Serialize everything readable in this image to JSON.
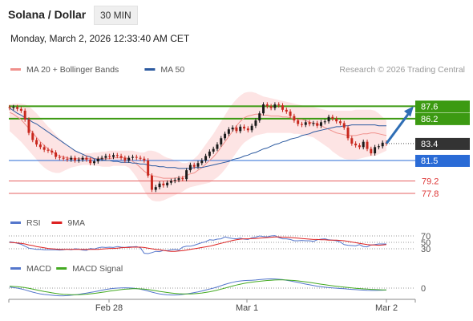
{
  "header": {
    "title": "Solana / Dollar",
    "timeframe": "30 MIN",
    "timestamp": "Monday, March 2, 2026 12:33:40 AM CET",
    "credit": "Research © 2026 Trading Central"
  },
  "legends": {
    "price": [
      {
        "label": "MA 20 + Bollinger Bands",
        "color": "#f0908c"
      },
      {
        "label": "MA 50",
        "color": "#2c5aa0"
      }
    ],
    "rsi": [
      {
        "label": "RSI",
        "color": "#5577cc"
      },
      {
        "label": "9MA",
        "color": "#dd2222"
      }
    ],
    "macd": [
      {
        "label": "MACD",
        "color": "#5577cc"
      },
      {
        "label": "MACD Signal",
        "color": "#44aa22"
      }
    ]
  },
  "colors": {
    "up": "#1a1a1a",
    "down": "#c8281e",
    "resistance": "#3c9a12",
    "support": "#e66060",
    "pivot": "#2a6bd6",
    "current": "#333333",
    "bb_fill": "#fde4e4",
    "arrow": "#2f6eb5"
  },
  "chart_data": [
    {
      "type": "candlestick",
      "title": "Solana / Dollar",
      "x_ticks": [
        "Feb 28",
        "Mar 1",
        "Mar 2"
      ],
      "y_range": [
        75.9,
        89.8
      ],
      "current_price": "83.4",
      "levels": [
        {
          "value": 87.6,
          "label": "87.6",
          "kind": "resistance"
        },
        {
          "value": 86.2,
          "label": "86.2",
          "kind": "resistance"
        },
        {
          "value": 81.5,
          "label": "81.5",
          "kind": "pivot"
        },
        {
          "value": 79.2,
          "label": "79.2",
          "kind": "support"
        },
        {
          "value": 77.8,
          "label": "77.8",
          "kind": "support"
        }
      ],
      "close": [
        87.4,
        87.5,
        87.3,
        87.1,
        86.1,
        84.6,
        83.8,
        83.3,
        83.0,
        82.7,
        82.6,
        82.4,
        81.9,
        81.8,
        81.7,
        81.6,
        81.8,
        81.5,
        81.6,
        81.8,
        81.6,
        81.2,
        81.4,
        81.7,
        81.8,
        82.0,
        81.9,
        82.1,
        82.0,
        81.8,
        81.5,
        81.8,
        81.9,
        81.8,
        81.7,
        81.5,
        79.8,
        78.2,
        78.5,
        78.9,
        78.7,
        79.0,
        79.2,
        79.3,
        79.5,
        79.4,
        80.4,
        81.0,
        80.8,
        81.2,
        81.5,
        82.0,
        82.5,
        82.8,
        83.3,
        84.0,
        84.5,
        85.0,
        85.2,
        84.8,
        85.3,
        85.1,
        84.9,
        85.4,
        86.0,
        86.8,
        87.8,
        87.6,
        87.4,
        87.8,
        87.7,
        87.2,
        87.0,
        86.5,
        86.0,
        85.6,
        85.5,
        85.8,
        85.6,
        85.7,
        85.4,
        85.8,
        85.9,
        86.4,
        86.2,
        85.9,
        85.7,
        85.2,
        84.0,
        83.4,
        83.2,
        83.0,
        83.6,
        82.8,
        82.3,
        83.0,
        83.1,
        83.5,
        83.4
      ],
      "bollinger": {
        "upper": [
          87.8,
          87.9,
          87.9,
          87.9,
          87.8,
          87.6,
          87.2,
          86.8,
          86.3,
          85.8,
          85.3,
          84.9,
          84.4,
          84.0,
          83.6,
          83.2,
          82.9,
          82.6,
          82.4,
          82.3,
          82.3,
          82.3,
          82.4,
          82.4,
          82.5,
          82.5,
          82.6,
          82.6,
          82.6,
          82.6,
          82.6,
          82.6,
          82.6,
          82.5,
          82.4,
          82.4,
          82.6,
          82.6,
          82.5,
          82.3,
          82.0,
          81.8,
          81.7,
          81.5,
          81.4,
          81.2,
          81.2,
          81.4,
          81.7,
          82.1,
          82.7,
          83.3,
          83.9,
          84.5,
          85.2,
          85.9,
          86.6,
          87.3,
          87.9,
          88.4,
          88.8,
          89.1,
          89.2,
          89.2,
          89.1,
          88.9,
          88.7,
          88.6,
          88.5,
          88.4,
          88.3,
          88.2,
          88.1,
          88.0,
          87.9,
          87.8,
          87.7,
          87.6,
          87.5,
          87.5,
          87.4,
          87.3,
          87.2,
          87.1,
          87.1,
          87.1,
          87.1,
          87.1,
          87.1,
          87.1,
          87.2,
          87.2,
          87.2,
          87.2,
          87.2,
          87.1,
          86.8,
          86.4,
          86.0
        ],
        "lower": [
          84.8,
          84.4,
          84.0,
          83.6,
          83.1,
          82.6,
          82.1,
          81.6,
          81.1,
          80.7,
          80.4,
          80.2,
          80.1,
          80.1,
          80.3,
          80.5,
          80.7,
          80.8,
          80.9,
          81.0,
          81.0,
          81.0,
          80.9,
          80.9,
          80.8,
          80.8,
          80.8,
          80.9,
          80.9,
          80.9,
          80.9,
          80.7,
          80.2,
          79.6,
          78.9,
          78.1,
          77.4,
          77.0,
          76.9,
          76.9,
          77.0,
          77.2,
          77.4,
          77.6,
          77.8,
          78.0,
          78.3,
          78.5,
          78.6,
          78.7,
          78.8,
          78.9,
          79.0,
          79.3,
          79.6,
          80.0,
          80.5,
          81.1,
          81.8,
          82.4,
          83.0,
          83.5,
          83.8,
          84.1,
          84.3,
          84.4,
          84.5,
          84.6,
          84.6,
          84.6,
          84.6,
          84.6,
          84.6,
          84.6,
          84.5,
          84.5,
          84.4,
          84.3,
          84.2,
          84.1,
          83.8,
          83.5,
          83.2,
          82.9,
          82.5,
          82.2,
          81.9,
          81.7,
          81.6,
          81.6,
          81.6,
          81.7,
          81.8,
          81.9,
          82.0,
          82.0,
          82.2,
          82.4,
          82.6
        ]
      },
      "ma20": [
        86.9,
        86.7,
        86.4,
        86.1,
        85.6,
        85.1,
        84.6,
        84.1,
        83.6,
        83.2,
        82.8,
        82.5,
        82.2,
        82.0,
        81.9,
        81.8,
        81.7,
        81.7,
        81.7,
        81.7,
        81.7,
        81.7,
        81.7,
        81.7,
        81.7,
        81.7,
        81.7,
        81.8,
        81.8,
        81.8,
        81.8,
        81.7,
        81.4,
        81.1,
        80.7,
        80.3,
        80.0,
        79.8,
        79.7,
        79.6,
        79.5,
        79.5,
        79.5,
        79.5,
        79.6,
        79.6,
        79.8,
        80.0,
        80.1,
        80.4,
        80.7,
        81.1,
        81.5,
        81.9,
        82.4,
        83.0,
        83.6,
        84.2,
        84.8,
        85.4,
        85.9,
        86.3,
        86.5,
        86.6,
        86.7,
        86.7,
        86.6,
        86.6,
        86.5,
        86.5,
        86.5,
        86.4,
        86.4,
        86.3,
        86.2,
        86.1,
        86.1,
        86.0,
        85.8,
        85.7,
        85.6,
        85.4,
        85.2,
        85.0,
        84.8,
        84.6,
        84.5,
        84.4,
        84.3,
        84.3,
        84.3,
        84.4,
        84.5,
        84.5,
        84.6,
        84.6,
        84.5,
        84.4,
        84.3
      ],
      "ma50": [
        87.4,
        87.1,
        86.8,
        86.6,
        86.3,
        86.1,
        85.8,
        85.6,
        85.3,
        85.0,
        84.7,
        84.4,
        84.1,
        83.8,
        83.5,
        83.2,
        82.9,
        82.6,
        82.4,
        82.2,
        82.0,
        81.9,
        81.7,
        81.6,
        81.6,
        81.5,
        81.5,
        81.4,
        81.4,
        81.3,
        81.3,
        81.3,
        81.2,
        81.2,
        81.1,
        81.1,
        81.0,
        80.9,
        80.9,
        80.8,
        80.8,
        80.7,
        80.7,
        80.7,
        80.6,
        80.6,
        80.6,
        80.6,
        80.7,
        80.7,
        80.7,
        80.8,
        80.9,
        81.0,
        81.1,
        81.2,
        81.3,
        81.4,
        81.6,
        81.7,
        81.8,
        82.0,
        82.1,
        82.3,
        82.4,
        82.6,
        82.8,
        82.9,
        83.1,
        83.3,
        83.4,
        83.6,
        83.7,
        83.9,
        84.0,
        84.1,
        84.3,
        84.4,
        84.5,
        84.7,
        84.8,
        84.9,
        85.0,
        85.1,
        85.2,
        85.3,
        85.3,
        85.4,
        85.4,
        85.5,
        85.5,
        85.5,
        85.5,
        85.5,
        85.5,
        85.5,
        85.4,
        85.4,
        85.4
      ]
    },
    {
      "type": "line",
      "title": "RSI",
      "levels": [
        "70",
        "50",
        "30"
      ],
      "y_range": [
        0,
        100
      ],
      "series": [
        {
          "name": "RSI",
          "values": [
            52,
            50,
            47,
            44,
            38,
            32,
            30,
            28,
            28,
            27,
            27,
            27,
            27,
            26,
            27,
            29,
            27,
            30,
            29,
            26,
            25,
            31,
            29,
            33,
            35,
            34,
            35,
            34,
            37,
            35,
            34,
            36,
            36,
            37,
            33,
            16,
            15,
            18,
            22,
            21,
            25,
            24,
            27,
            28,
            26,
            35,
            38,
            38,
            41,
            45,
            49,
            52,
            58,
            57,
            60,
            61,
            67,
            64,
            62,
            61,
            63,
            60,
            59,
            64,
            66,
            70,
            68,
            67,
            70,
            71,
            65,
            61,
            61,
            59,
            55,
            55,
            56,
            55,
            55,
            53,
            58,
            60,
            61,
            58,
            57,
            55,
            51,
            43,
            41,
            40,
            39,
            43,
            37,
            36,
            42,
            43,
            45,
            45,
            45
          ]
        },
        {
          "name": "9MA",
          "values": [
            50,
            49,
            48,
            47,
            45,
            42,
            40,
            37,
            35,
            33,
            31,
            30,
            29,
            28,
            28,
            28,
            28,
            28,
            28,
            28,
            28,
            28,
            28,
            28,
            29,
            30,
            31,
            31,
            32,
            33,
            34,
            34,
            35,
            35,
            35,
            34,
            32,
            30,
            28,
            27,
            25,
            23,
            22,
            22,
            23,
            24,
            26,
            28,
            30,
            32,
            34,
            36,
            38,
            41,
            44,
            47,
            50,
            53,
            56,
            58,
            60,
            61,
            61,
            62,
            62,
            63,
            64,
            65,
            66,
            67,
            67,
            66,
            66,
            65,
            64,
            63,
            62,
            61,
            60,
            59,
            59,
            58,
            58,
            57,
            57,
            57,
            56,
            55,
            53,
            51,
            49,
            47,
            45,
            43,
            42,
            42,
            41,
            42,
            43
          ]
        }
      ]
    },
    {
      "type": "line",
      "title": "MACD",
      "levels": [
        "0"
      ],
      "y_range": [
        -1.4,
        1.3
      ],
      "series": [
        {
          "name": "MACD",
          "values": [
            0.1,
            0.05,
            0.0,
            -0.08,
            -0.18,
            -0.3,
            -0.42,
            -0.52,
            -0.6,
            -0.66,
            -0.7,
            -0.74,
            -0.78,
            -0.8,
            -0.8,
            -0.78,
            -0.74,
            -0.7,
            -0.64,
            -0.58,
            -0.52,
            -0.45,
            -0.38,
            -0.3,
            -0.22,
            -0.15,
            -0.08,
            -0.03,
            0.0,
            0.02,
            0.03,
            0.02,
            0.0,
            -0.05,
            -0.12,
            -0.2,
            -0.3,
            -0.42,
            -0.52,
            -0.6,
            -0.66,
            -0.7,
            -0.72,
            -0.72,
            -0.7,
            -0.66,
            -0.6,
            -0.54,
            -0.47,
            -0.39,
            -0.3,
            -0.2,
            -0.1,
            0.0,
            0.12,
            0.25,
            0.38,
            0.5,
            0.6,
            0.68,
            0.74,
            0.78,
            0.8,
            0.82,
            0.84,
            0.88,
            0.92,
            0.95,
            0.96,
            0.95,
            0.92,
            0.88,
            0.82,
            0.75,
            0.67,
            0.59,
            0.5,
            0.42,
            0.34,
            0.27,
            0.2,
            0.14,
            0.09,
            0.05,
            0.02,
            -0.01,
            -0.04,
            -0.07,
            -0.1,
            -0.13,
            -0.16,
            -0.19,
            -0.21,
            -0.23,
            -0.24,
            -0.24,
            -0.23,
            -0.22,
            -0.2
          ]
        },
        {
          "name": "MACD Signal",
          "values": [
            0.2,
            0.17,
            0.14,
            0.1,
            0.05,
            -0.02,
            -0.1,
            -0.18,
            -0.27,
            -0.35,
            -0.42,
            -0.49,
            -0.55,
            -0.6,
            -0.64,
            -0.67,
            -0.69,
            -0.69,
            -0.68,
            -0.66,
            -0.63,
            -0.59,
            -0.55,
            -0.5,
            -0.44,
            -0.38,
            -0.32,
            -0.26,
            -0.21,
            -0.16,
            -0.12,
            -0.09,
            -0.07,
            -0.07,
            -0.08,
            -0.11,
            -0.15,
            -0.21,
            -0.27,
            -0.34,
            -0.4,
            -0.46,
            -0.51,
            -0.55,
            -0.58,
            -0.6,
            -0.61,
            -0.6,
            -0.58,
            -0.55,
            -0.51,
            -0.45,
            -0.38,
            -0.3,
            -0.21,
            -0.11,
            0.0,
            0.11,
            0.22,
            0.32,
            0.41,
            0.49,
            0.56,
            0.62,
            0.67,
            0.71,
            0.75,
            0.79,
            0.82,
            0.84,
            0.85,
            0.85,
            0.84,
            0.82,
            0.79,
            0.75,
            0.7,
            0.65,
            0.59,
            0.53,
            0.47,
            0.41,
            0.35,
            0.29,
            0.24,
            0.19,
            0.14,
            0.1,
            0.06,
            0.02,
            -0.02,
            -0.05,
            -0.08,
            -0.11,
            -0.13,
            -0.15,
            -0.17,
            -0.18,
            -0.18
          ]
        }
      ]
    }
  ]
}
